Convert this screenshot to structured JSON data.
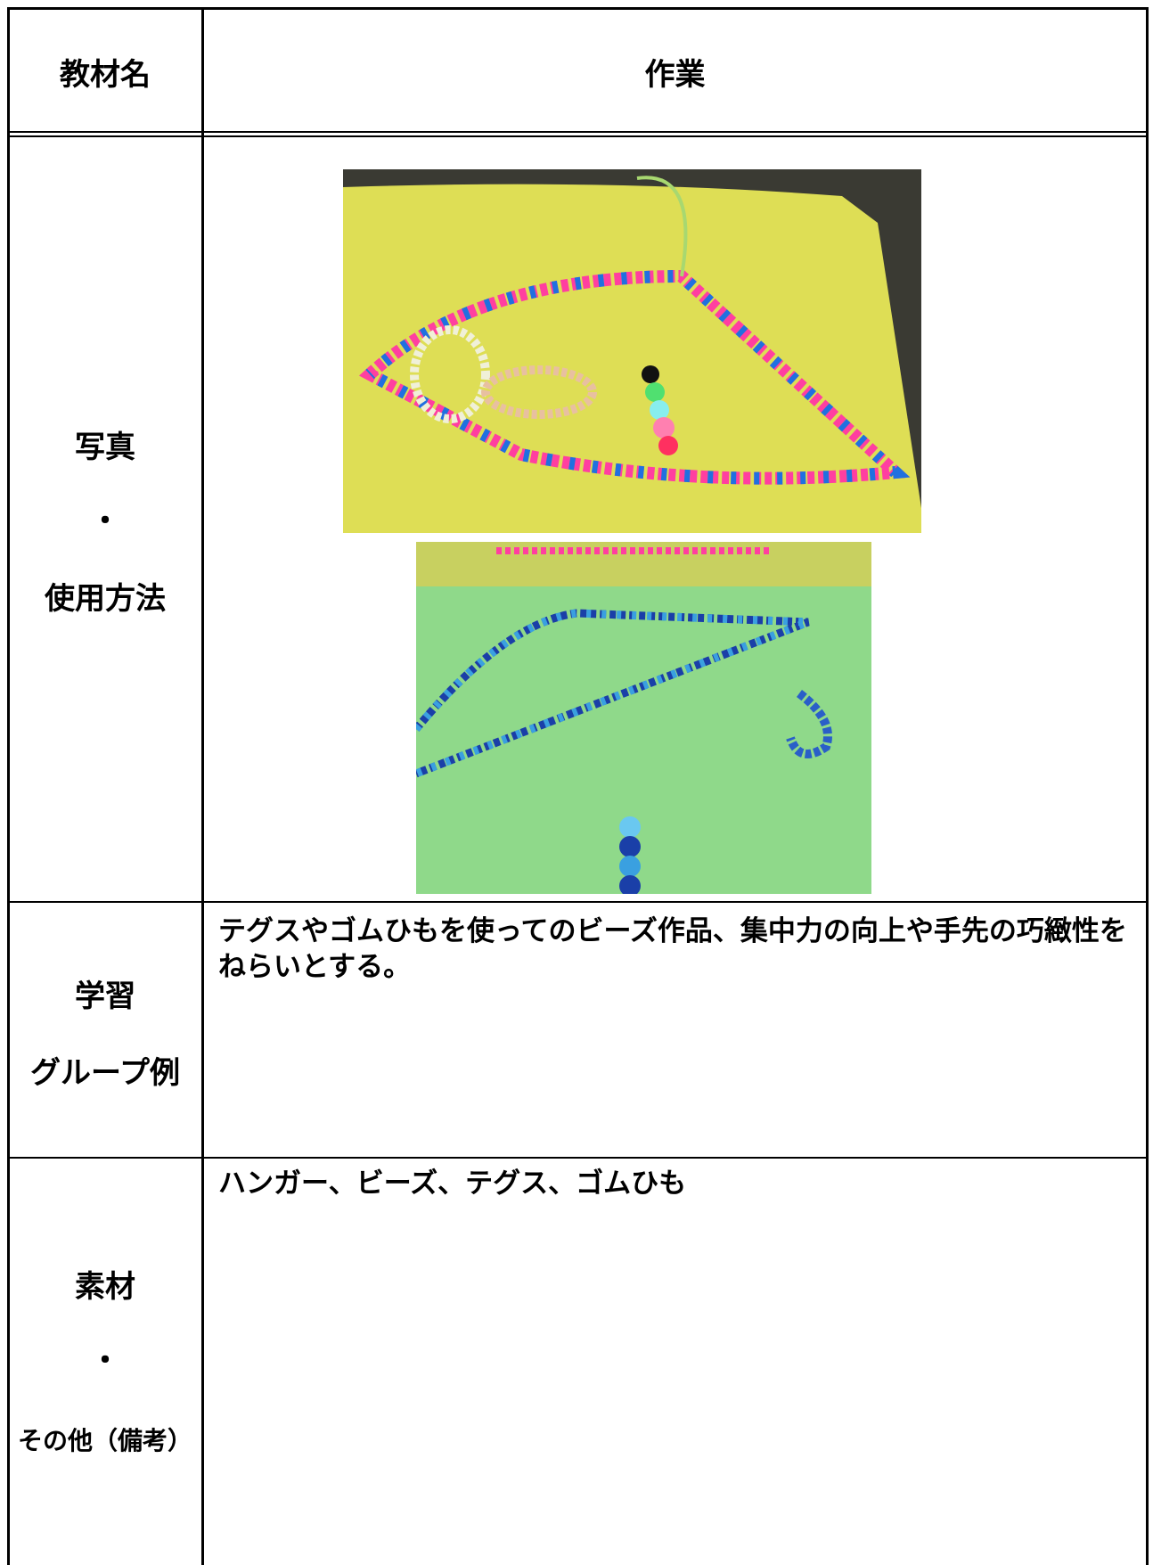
{
  "header": {
    "label_column": "教材名",
    "title_column": "作業"
  },
  "rows": [
    {
      "label": [
        "写真",
        "・",
        "使用方法"
      ]
    },
    {
      "label": [
        "学習",
        "グループ例"
      ],
      "text": "テグスやゴムひもを使ってのビーズ作品、集中力の向上や手先の巧緻性をねらいとする。"
    },
    {
      "label": [
        "素材",
        "・",
        "その他（備考）"
      ],
      "text": "ハンガー、ビーズ、テグス、ゴムひも"
    }
  ]
}
